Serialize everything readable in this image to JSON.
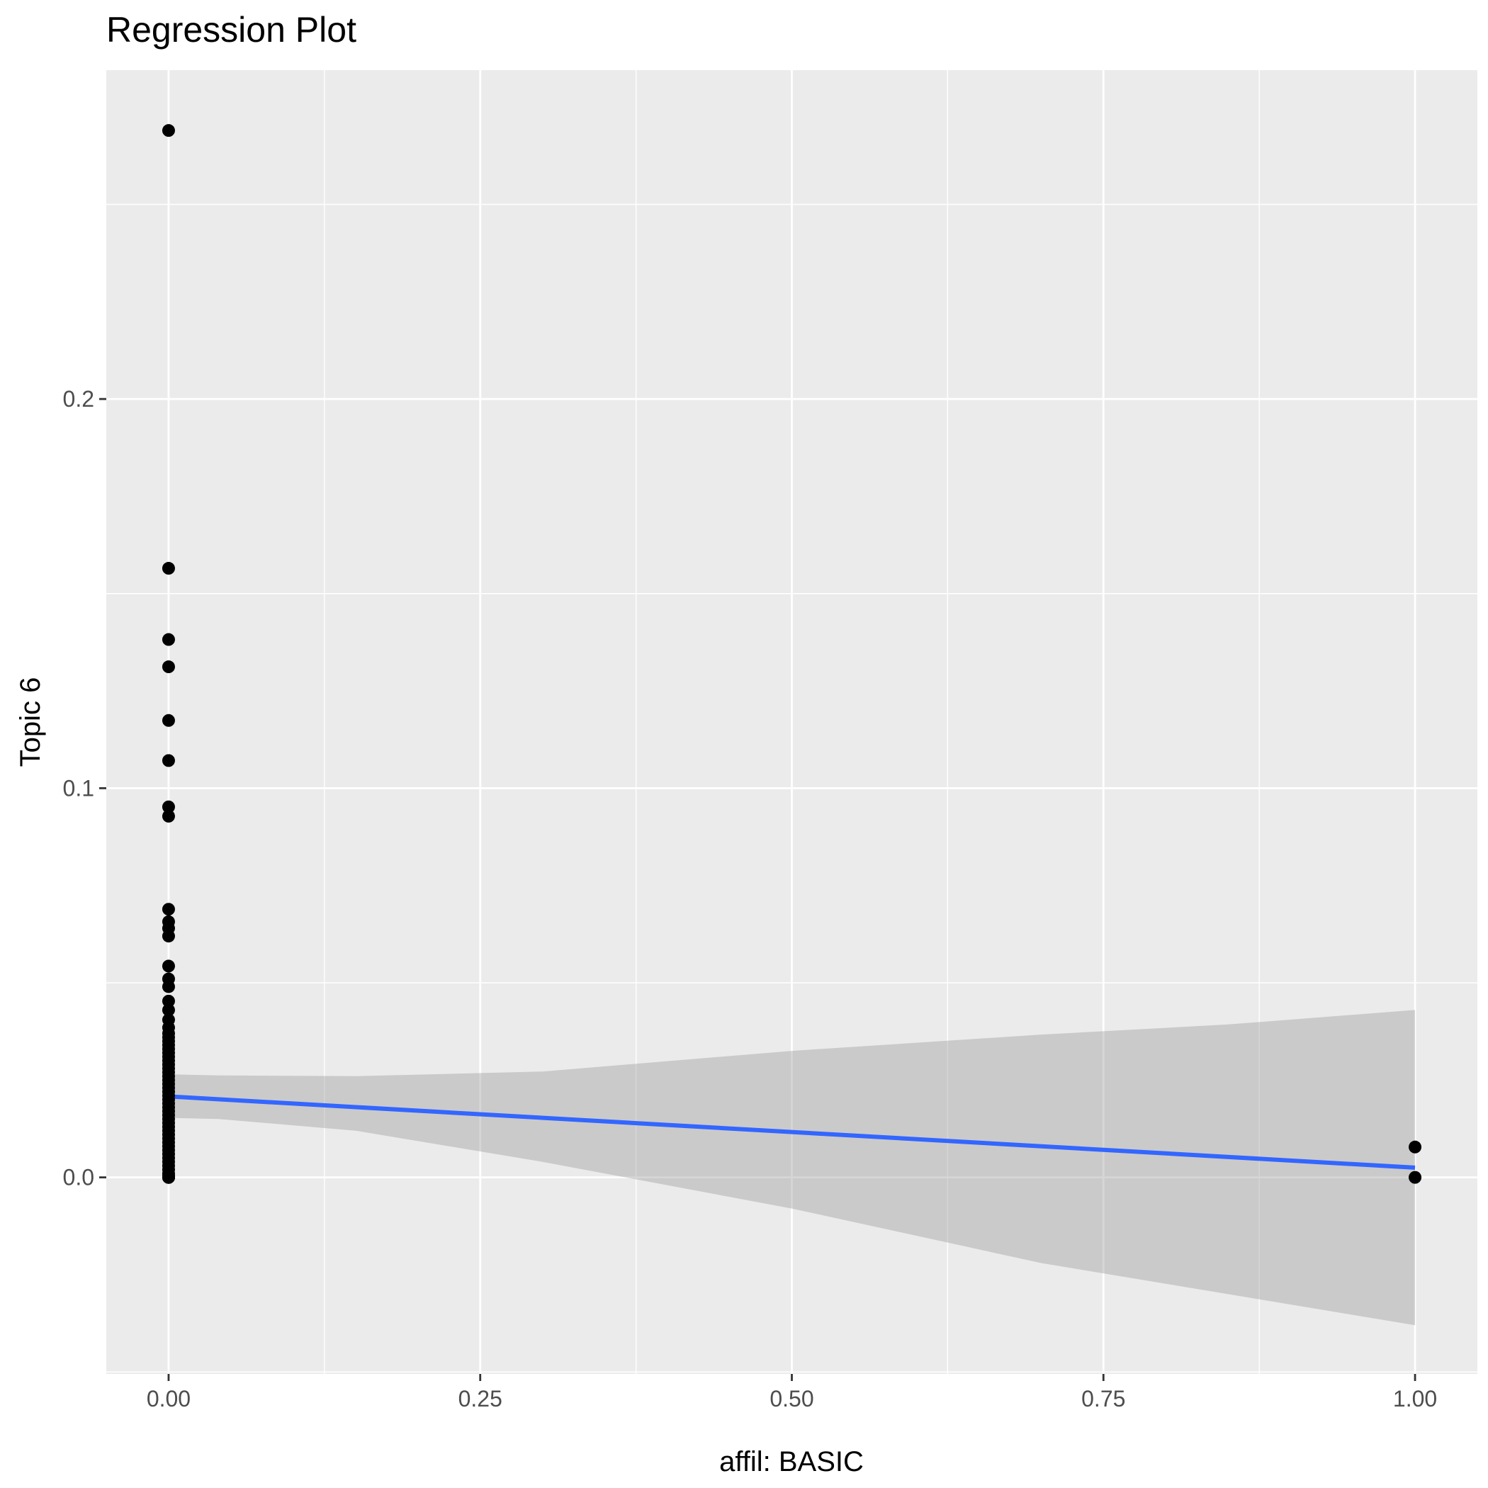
{
  "chart_data": {
    "type": "scatter",
    "title": "Regression Plot",
    "xlabel": "affil: BASIC",
    "ylabel": "Topic 6",
    "xlim": [
      -0.05,
      1.05
    ],
    "ylim": [
      -0.0505,
      0.2845
    ],
    "x_ticks": [
      {
        "value": 0.0,
        "label": "0.00"
      },
      {
        "value": 0.25,
        "label": "0.25"
      },
      {
        "value": 0.5,
        "label": "0.50"
      },
      {
        "value": 0.75,
        "label": "0.75"
      },
      {
        "value": 1.0,
        "label": "1.00"
      }
    ],
    "y_ticks": [
      {
        "value": 0.0,
        "label": "0.0"
      },
      {
        "value": 0.1,
        "label": "0.1"
      },
      {
        "value": 0.2,
        "label": "0.2"
      }
    ],
    "x_minor": [
      0.125,
      0.375,
      0.625,
      0.875
    ],
    "y_minor": [
      -0.05,
      0.05,
      0.15,
      0.25
    ],
    "grid": true,
    "colors": {
      "panel": "#ebebeb",
      "grid": "#ffffff",
      "points": "#000000",
      "line": "#3366ff",
      "ribbon": "#999999"
    },
    "points": {
      "x": [
        0,
        0,
        0,
        0,
        0,
        0,
        0,
        0,
        0,
        0,
        0,
        0,
        0,
        0,
        0,
        0,
        0,
        0,
        0,
        0,
        0,
        0,
        0,
        0,
        0,
        0,
        0,
        0,
        0,
        0,
        0,
        0,
        0,
        0,
        0,
        0,
        0,
        0,
        0,
        0,
        0,
        0,
        0,
        0,
        0,
        0,
        0,
        0,
        0,
        0,
        0,
        0,
        0,
        0,
        0,
        0,
        0,
        0,
        0,
        0,
        0,
        0,
        1,
        1
      ],
      "y": [
        0.269,
        0.1565,
        0.1382,
        0.1312,
        0.1174,
        0.1071,
        0.0952,
        0.0928,
        0.0689,
        0.0657,
        0.064,
        0.062,
        0.0543,
        0.051,
        0.049,
        0.0453,
        0.043,
        0.0405,
        0.0385,
        0.037,
        0.036,
        0.035,
        0.034,
        0.033,
        0.032,
        0.031,
        0.03,
        0.029,
        0.028,
        0.027,
        0.026,
        0.025,
        0.024,
        0.023,
        0.022,
        0.021,
        0.02,
        0.019,
        0.018,
        0.017,
        0.016,
        0.015,
        0.014,
        0.013,
        0.012,
        0.011,
        0.01,
        0.009,
        0.008,
        0.007,
        0.006,
        0.005,
        0.004,
        0.003,
        0.002,
        0.001,
        0.0005,
        0.0,
        0.0,
        0.0,
        0.0,
        0.0,
        0.0078,
        0.0
      ]
    },
    "fit": {
      "x": [
        0,
        1
      ],
      "y": [
        0.0208,
        0.0025
      ]
    },
    "confidence_band": {
      "x": [
        0,
        0.04,
        0.15,
        0.3,
        0.5,
        0.7,
        0.85,
        1.0
      ],
      "upper": [
        0.0265,
        0.0262,
        0.026,
        0.0272,
        0.0325,
        0.0367,
        0.0393,
        0.043
      ],
      "lower": [
        0.0153,
        0.015,
        0.012,
        0.004,
        -0.008,
        -0.022,
        -0.03,
        -0.038
      ]
    }
  }
}
